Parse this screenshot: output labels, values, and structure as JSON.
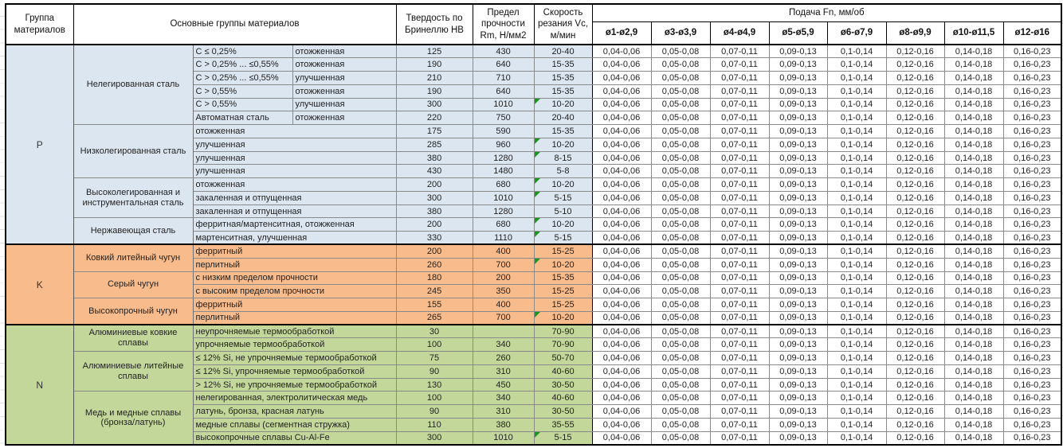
{
  "table": {
    "header": {
      "col_group": "Группа материалов",
      "col_main": "Основные группы материалов",
      "col_hb": "Твердость по Бринеллю HB",
      "col_rm": "Предел прочности Rm, Н/мм2",
      "col_vc": "Скорость резания Vc, м/мин",
      "col_feed": "Подача Fn, мм/об",
      "feed_cols": [
        "ø1-ø2,9",
        "ø3-ø3,9",
        "ø4-ø4,9",
        "ø5-ø5,9",
        "ø6-ø7,9",
        "ø8-ø9,9",
        "ø10-ø11,5",
        "ø12-ø16"
      ]
    },
    "feeds": [
      "0,04-0,06",
      "0,05-0,08",
      "0,07-0,11",
      "0,09-0,13",
      "0,1-0,14",
      "0,12-0,16",
      "0,14-0,18",
      "0,16-0,23"
    ],
    "sections": [
      {
        "code": "P",
        "color": "#dce6f1",
        "groups": [
          {
            "name": "Нелегированная сталь",
            "rows": [
              {
                "c1": "C ≤ 0,25%",
                "c2": "отожженная",
                "hb": "125",
                "rm": "430",
                "vc": "20-40",
                "warn": false
              },
              {
                "c1": "C > 0,25% ... ≤0,55%",
                "c2": "отожженная",
                "hb": "190",
                "rm": "640",
                "vc": "15-35",
                "warn": false
              },
              {
                "c1": "C > 0,25% ... ≤0,55%",
                "c2": "улучшенная",
                "hb": "210",
                "rm": "710",
                "vc": "15-35",
                "warn": false
              },
              {
                "c1": "C > 0,55%",
                "c2": "отожженная",
                "hb": "190",
                "rm": "640",
                "vc": "15-35",
                "warn": false
              },
              {
                "c1": "C > 0,55%",
                "c2": "улучшенная",
                "hb": "300",
                "rm": "1010",
                "vc": "10-20",
                "warn": true
              },
              {
                "c1": "Автоматная сталь",
                "c2": "отожженная",
                "hb": "220",
                "rm": "750",
                "vc": "20-40",
                "warn": false
              }
            ]
          },
          {
            "name": "Низколегированная сталь",
            "rows": [
              {
                "c1": "отожженная",
                "hb": "175",
                "rm": "590",
                "vc": "15-35",
                "warn": false
              },
              {
                "c1": "улучшенная",
                "hb": "285",
                "rm": "960",
                "vc": "10-20",
                "warn": true
              },
              {
                "c1": "улучшенная",
                "hb": "380",
                "rm": "1280",
                "vc": "8-15",
                "warn": true
              },
              {
                "c1": "улучшенная",
                "hb": "430",
                "rm": "1480",
                "vc": "5-8",
                "warn": false
              }
            ]
          },
          {
            "name": "Высоколегированная и инструментальная сталь",
            "rows": [
              {
                "c1": "отожженная",
                "hb": "200",
                "rm": "680",
                "vc": "10-20",
                "warn": true
              },
              {
                "c1": "закаленная и отпущенная",
                "hb": "300",
                "rm": "1010",
                "vc": "5-15",
                "warn": true
              },
              {
                "c1": "закаленная и отпущенная",
                "hb": "380",
                "rm": "1280",
                "vc": "5-10",
                "warn": false
              }
            ]
          },
          {
            "name": "Нержавеющая сталь",
            "rows": [
              {
                "c1": "ферритная/мартенситная, отожженная",
                "hb": "200",
                "rm": "680",
                "vc": "10-20",
                "warn": true
              },
              {
                "c1": "мартенситная, улучшенная",
                "hb": "330",
                "rm": "1110",
                "vc": "5-15",
                "warn": true
              }
            ]
          }
        ]
      },
      {
        "code": "K",
        "color": "#f8bb8b",
        "groups": [
          {
            "name": "Ковкий литейный чугун",
            "rows": [
              {
                "c1": "ферритный",
                "hb": "200",
                "rm": "400",
                "vc": "15-25",
                "warn": false
              },
              {
                "c1": "перлитный",
                "hb": "260",
                "rm": "700",
                "vc": "10-20",
                "warn": true
              }
            ]
          },
          {
            "name": "Серый чугун",
            "rows": [
              {
                "c1": "с низким пределом прочности",
                "hb": "180",
                "rm": "200",
                "vc": "15-35",
                "warn": false
              },
              {
                "c1": "с высоким пределом прочности",
                "hb": "245",
                "rm": "350",
                "vc": "15-25",
                "warn": false
              }
            ]
          },
          {
            "name": "Высокопрочный чугун",
            "rows": [
              {
                "c1": "ферритный",
                "hb": "155",
                "rm": "400",
                "vc": "15-25",
                "warn": false
              },
              {
                "c1": "перлитный",
                "hb": "265",
                "rm": "700",
                "vc": "10-20",
                "warn": true
              }
            ]
          }
        ]
      },
      {
        "code": "N",
        "color": "#c4d79b",
        "groups": [
          {
            "name": "Алюминиевые ковкие сплавы",
            "rows": [
              {
                "c1": "неупрочняемые термообработкой",
                "hb": "30",
                "rm": "",
                "vc": "70-90",
                "warn": false
              },
              {
                "c1": "упрочняемые термообработкой",
                "hb": "100",
                "rm": "340",
                "vc": "70-90",
                "warn": false
              }
            ]
          },
          {
            "name": "Алюминиевые литейные сплавы",
            "rows": [
              {
                "c1": "≤ 12% Si, не упрочняемые термообработкой",
                "hb": "75",
                "rm": "260",
                "vc": "50-70",
                "warn": false
              },
              {
                "c1": "≤ 12% Si, упрочняемые термообработкой",
                "hb": "90",
                "rm": "310",
                "vc": "40-60",
                "warn": false
              },
              {
                "c1": "> 12% Si, не упрочняемые термообработкой",
                "hb": "130",
                "rm": "450",
                "vc": "30-50",
                "warn": false
              }
            ]
          },
          {
            "name": "Медь и медные сплавы (бронза/латунь)",
            "rows": [
              {
                "c1": "нелегированная, электролитическая медь",
                "hb": "100",
                "rm": "340",
                "vc": "40-60",
                "warn": false
              },
              {
                "c1": "латунь, бронза, красная латунь",
                "hb": "90",
                "rm": "310",
                "vc": "30-50",
                "warn": false
              },
              {
                "c1": "медные сплавы (сегментная стружка)",
                "hb": "110",
                "rm": "380",
                "vc": "35-55",
                "warn": false
              },
              {
                "c1": "высокопрочные сплавы Cu-Al-Fe",
                "hb": "300",
                "rm": "1010",
                "vc": "5-15",
                "warn": true
              }
            ]
          }
        ]
      }
    ]
  },
  "colors": {
    "section_p": "#dce6f1",
    "section_k": "#f8bb8b",
    "section_n": "#c4d79b",
    "warn_triangle": "#18981d",
    "grid_border": "#8a8a8a",
    "strong_border": "#000000"
  },
  "icons": {
    "warn": "error-check-triangle"
  }
}
